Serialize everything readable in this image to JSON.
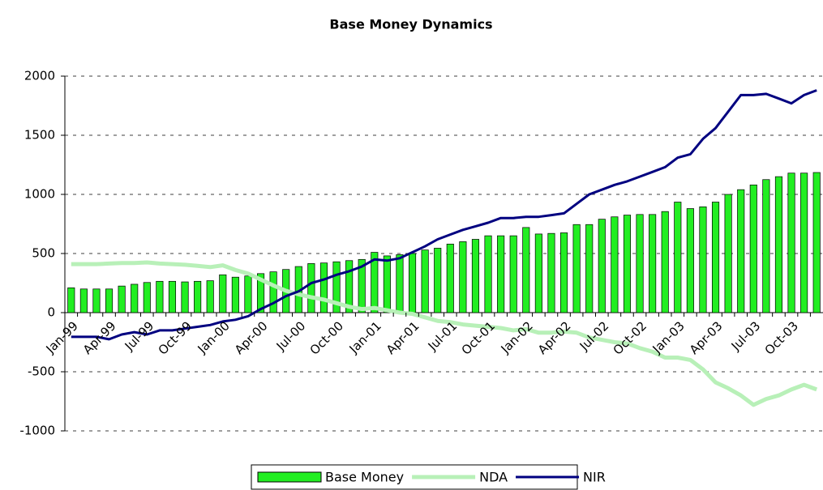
{
  "chart_data": {
    "type": "bar_line",
    "title": "Base Money Dynamics",
    "categories": [
      "Jan-99",
      null,
      null,
      "Apr-99",
      null,
      null,
      "Jul-99",
      null,
      null,
      "Oct-99",
      null,
      null,
      "Jan-00",
      null,
      null,
      "Apr-00",
      null,
      null,
      "Jul-00",
      null,
      null,
      "Oct-00",
      null,
      null,
      "Jan-01",
      null,
      null,
      "Apr-01",
      null,
      null,
      "Jul-01",
      null,
      null,
      "Oct-01",
      null,
      null,
      "Jan-02",
      null,
      null,
      "Apr-02",
      null,
      null,
      "Jul-02",
      null,
      null,
      "Oct-02",
      null,
      null,
      "Jan-03",
      null,
      null,
      "Apr-03",
      null,
      null,
      "Jul-03",
      null,
      null,
      "Oct-03",
      null,
      null
    ],
    "series": [
      {
        "name": "Base Money",
        "kind": "bar",
        "color": "#22ee22",
        "values": [
          210,
          200,
          200,
          200,
          225,
          240,
          255,
          265,
          265,
          260,
          265,
          270,
          320,
          300,
          310,
          330,
          345,
          365,
          390,
          415,
          420,
          430,
          440,
          450,
          510,
          480,
          490,
          500,
          530,
          545,
          580,
          600,
          620,
          650,
          650,
          650,
          720,
          665,
          670,
          675,
          745,
          745,
          790,
          810,
          825,
          830,
          830,
          855,
          935,
          880,
          895,
          935,
          1000,
          1040,
          1080,
          1125,
          1150,
          1180,
          1180,
          1185
        ]
      },
      {
        "name": "NDA",
        "kind": "line",
        "color": "#b8f0b8",
        "values": [
          410,
          410,
          410,
          415,
          420,
          420,
          425,
          415,
          410,
          405,
          395,
          385,
          400,
          360,
          330,
          280,
          230,
          185,
          155,
          130,
          110,
          80,
          50,
          30,
          40,
          20,
          0,
          -10,
          -40,
          -70,
          -80,
          -100,
          -110,
          -120,
          -130,
          -150,
          -140,
          -170,
          -170,
          -160,
          -170,
          -210,
          -230,
          -250,
          -260,
          -300,
          -330,
          -380,
          -380,
          -400,
          -480,
          -590,
          -640,
          -700,
          -780,
          -730,
          -700,
          -650,
          -610,
          -650
        ]
      },
      {
        "name": "NIR",
        "kind": "line",
        "color": "#000080",
        "values": [
          -205,
          -205,
          -205,
          -225,
          -185,
          -165,
          -185,
          -150,
          -150,
          -135,
          -120,
          -105,
          -75,
          -60,
          -30,
          30,
          80,
          140,
          180,
          250,
          280,
          320,
          350,
          390,
          450,
          440,
          460,
          510,
          560,
          620,
          660,
          700,
          730,
          760,
          800,
          800,
          810,
          810,
          825,
          840,
          920,
          1000,
          1040,
          1080,
          1110,
          1150,
          1190,
          1230,
          1310,
          1340,
          1470,
          1560,
          1700,
          1840,
          1840,
          1850,
          1810,
          1770,
          1840,
          1880
        ]
      }
    ],
    "ylim": [
      -1000,
      2000
    ],
    "yticks": [
      -1000,
      -500,
      0,
      500,
      1000,
      1500,
      2000
    ],
    "grid": true
  }
}
